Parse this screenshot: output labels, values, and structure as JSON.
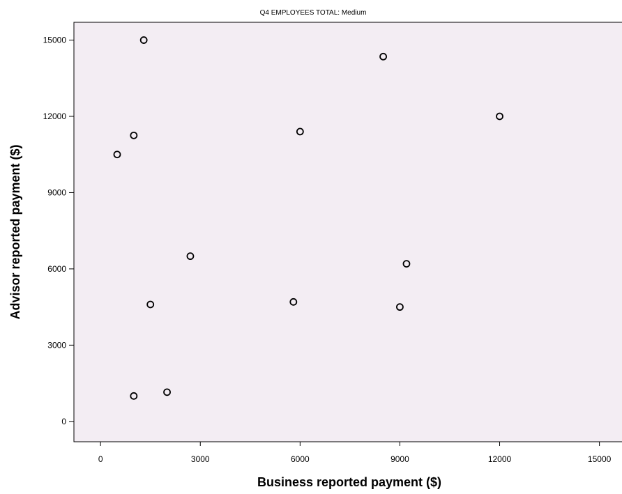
{
  "chart_data": {
    "type": "scatter",
    "title": "Q4 EMPLOYEES TOTAL: Medium",
    "xlabel": "Business reported payment ($)",
    "ylabel": "Advisor reported payment ($)",
    "xlim": [
      -800,
      15700
    ],
    "ylim": [
      -800,
      15700
    ],
    "xticks": [
      0,
      3000,
      6000,
      9000,
      12000,
      15000
    ],
    "yticks": [
      0,
      3000,
      6000,
      9000,
      12000,
      15000
    ],
    "grid": false,
    "background": "#f3edf3",
    "marker_color": "#000000",
    "points": [
      {
        "x": 1300,
        "y": 15000
      },
      {
        "x": 8500,
        "y": 14350
      },
      {
        "x": 12000,
        "y": 12000
      },
      {
        "x": 6000,
        "y": 11400
      },
      {
        "x": 1000,
        "y": 11250
      },
      {
        "x": 500,
        "y": 10500
      },
      {
        "x": 2700,
        "y": 6500
      },
      {
        "x": 9200,
        "y": 6200
      },
      {
        "x": 5800,
        "y": 4700
      },
      {
        "x": 1500,
        "y": 4600
      },
      {
        "x": 9000,
        "y": 4500
      },
      {
        "x": 2000,
        "y": 1150
      },
      {
        "x": 1000,
        "y": 1000
      }
    ]
  }
}
